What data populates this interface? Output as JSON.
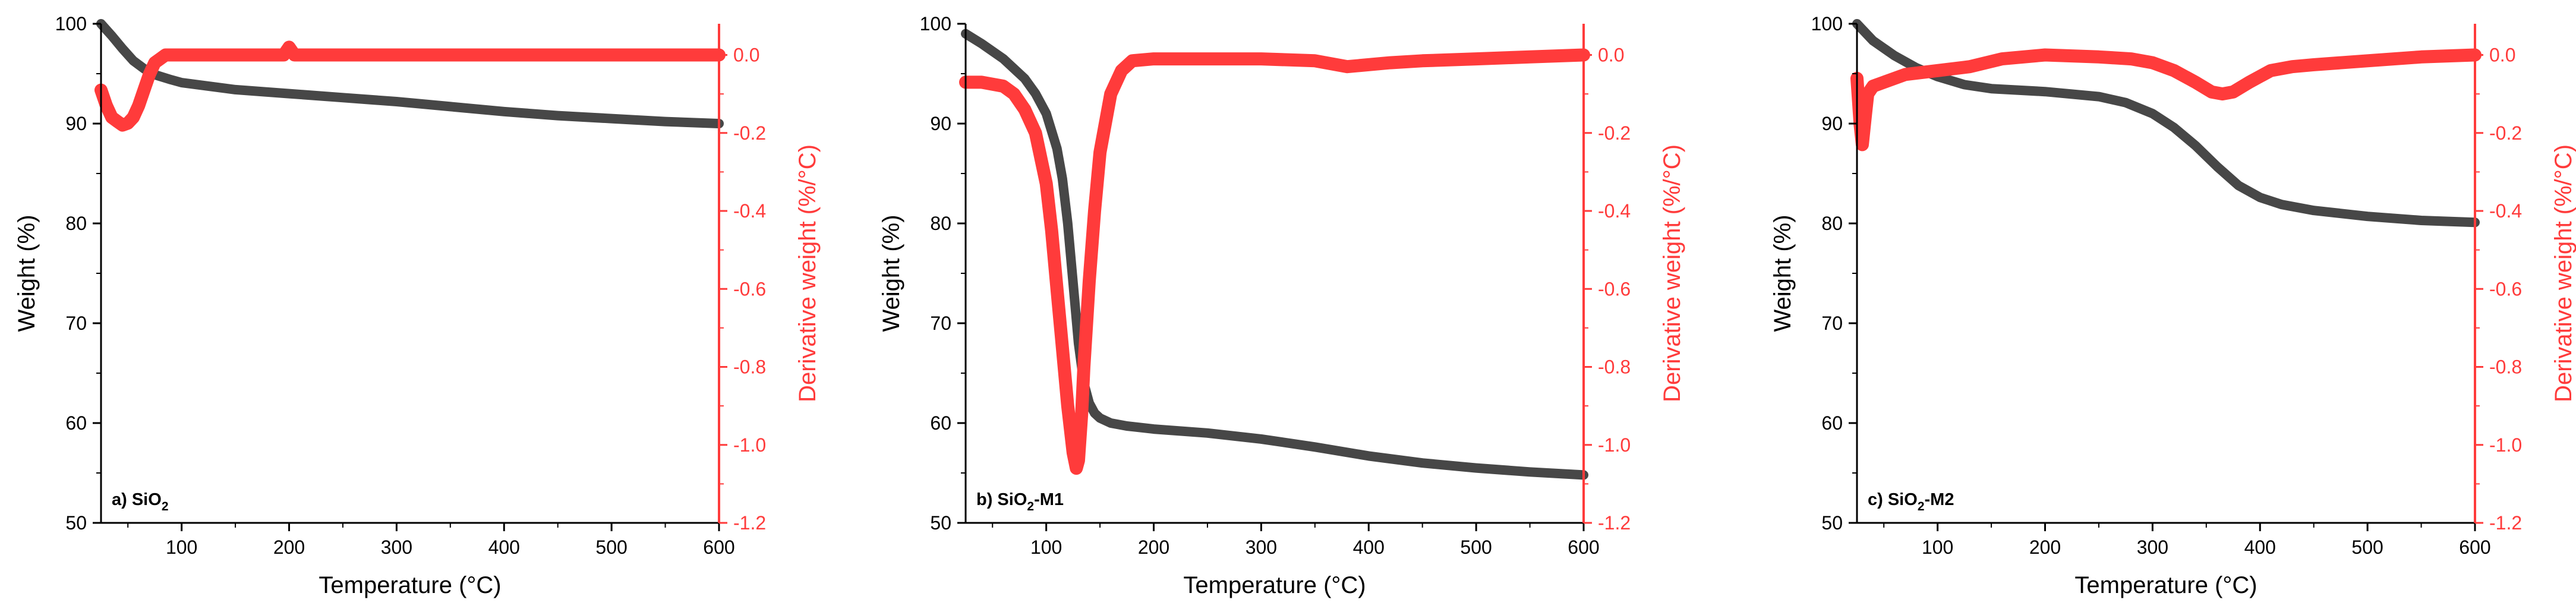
{
  "colors": {
    "weight": "#474747",
    "derivative": "#ff3b3b",
    "axis": "#000000"
  },
  "chart_data": [
    {
      "type": "line",
      "panel_label": {
        "prefix": "a) SiO",
        "subscript": "2",
        "suffix": ""
      },
      "xlabel": "Temperature (°C)",
      "ylabel": "Weight (%)",
      "y2label": "Derivative weight (%/°C)",
      "xlim": [
        25,
        600
      ],
      "ylim": [
        50,
        100
      ],
      "y2lim": [
        -1.2,
        0.08
      ],
      "xticks": [
        100,
        200,
        300,
        400,
        500,
        600
      ],
      "yticks": [
        50,
        60,
        70,
        80,
        90,
        100
      ],
      "y2ticks": [
        -1.2,
        -1.0,
        -0.8,
        -0.6,
        -0.4,
        -0.2,
        0.0
      ],
      "series": [
        {
          "name": "Weight",
          "axis": "left",
          "x": [
            25,
            35,
            45,
            55,
            65,
            75,
            90,
            100,
            150,
            200,
            250,
            300,
            350,
            400,
            450,
            500,
            550,
            600
          ],
          "y": [
            100,
            98.8,
            97.5,
            96.3,
            95.5,
            94.9,
            94.4,
            94.1,
            93.4,
            93.0,
            92.6,
            92.2,
            91.7,
            91.2,
            90.8,
            90.5,
            90.2,
            90.0
          ]
        },
        {
          "name": "Derivative weight",
          "axis": "right",
          "x": [
            25,
            30,
            35,
            40,
            45,
            50,
            55,
            60,
            65,
            70,
            75,
            80,
            85,
            90,
            100,
            150,
            195,
            200,
            205,
            250,
            300,
            350,
            400,
            450,
            500,
            550,
            600
          ],
          "y": [
            -0.09,
            -0.13,
            -0.16,
            -0.17,
            -0.18,
            -0.175,
            -0.16,
            -0.13,
            -0.09,
            -0.05,
            -0.02,
            -0.01,
            0.0,
            0.0,
            0.0,
            0.0,
            0.0,
            0.02,
            0.0,
            0.0,
            0.0,
            0.0,
            0.0,
            0.0,
            0.0,
            0.0,
            0.0
          ]
        }
      ]
    },
    {
      "type": "line",
      "panel_label": {
        "prefix": "b) SiO",
        "subscript": "2",
        "suffix": "-M1"
      },
      "xlabel": "Temperature (°C)",
      "ylabel": "Weight (%)",
      "y2label": "Derivative weight (%/°C)",
      "xlim": [
        25,
        600
      ],
      "ylim": [
        50,
        100
      ],
      "y2lim": [
        -1.2,
        0.08
      ],
      "xticks": [
        100,
        200,
        300,
        400,
        500,
        600
      ],
      "yticks": [
        50,
        60,
        70,
        80,
        90,
        100
      ],
      "y2ticks": [
        -1.2,
        -1.0,
        -0.8,
        -0.6,
        -0.4,
        -0.2,
        0.0
      ],
      "series": [
        {
          "name": "Weight",
          "axis": "left",
          "x": [
            25,
            40,
            60,
            80,
            90,
            100,
            110,
            115,
            120,
            125,
            130,
            135,
            140,
            145,
            150,
            160,
            175,
            200,
            250,
            300,
            350,
            400,
            450,
            500,
            550,
            600
          ],
          "y": [
            99,
            98,
            96.5,
            94.5,
            93,
            91,
            87.5,
            84.5,
            80,
            74,
            68,
            64,
            62,
            61,
            60.5,
            60,
            59.7,
            59.4,
            59.0,
            58.4,
            57.6,
            56.7,
            56.0,
            55.5,
            55.1,
            54.8
          ]
        },
        {
          "name": "Derivative weight",
          "axis": "right",
          "x": [
            25,
            40,
            60,
            70,
            80,
            90,
            100,
            105,
            110,
            115,
            120,
            125,
            128,
            130,
            133,
            135,
            140,
            145,
            150,
            160,
            170,
            180,
            200,
            250,
            300,
            350,
            380,
            420,
            450,
            500,
            550,
            600
          ],
          "y": [
            -0.07,
            -0.07,
            -0.08,
            -0.1,
            -0.14,
            -0.2,
            -0.33,
            -0.45,
            -0.6,
            -0.75,
            -0.9,
            -1.02,
            -1.06,
            -1.04,
            -0.92,
            -0.8,
            -0.58,
            -0.4,
            -0.25,
            -0.1,
            -0.04,
            -0.015,
            -0.01,
            -0.01,
            -0.01,
            -0.015,
            -0.03,
            -0.02,
            -0.015,
            -0.01,
            -0.005,
            0.0
          ]
        }
      ]
    },
    {
      "type": "line",
      "panel_label": {
        "prefix": "c) SiO",
        "subscript": "2",
        "suffix": "-M2"
      },
      "xlabel": "Temperature (°C)",
      "ylabel": "Weight (%)",
      "y2label": "Derivative weight (%/°C)",
      "xlim": [
        25,
        600
      ],
      "ylim": [
        50,
        100
      ],
      "y2lim": [
        -1.2,
        0.08
      ],
      "xticks": [
        100,
        200,
        300,
        400,
        500,
        600
      ],
      "yticks": [
        50,
        60,
        70,
        80,
        90,
        100
      ],
      "y2ticks": [
        -1.2,
        -1.0,
        -0.8,
        -0.6,
        -0.4,
        -0.2,
        0.0
      ],
      "series": [
        {
          "name": "Weight",
          "axis": "left",
          "x": [
            25,
            40,
            60,
            80,
            100,
            125,
            150,
            200,
            250,
            275,
            300,
            320,
            340,
            360,
            380,
            400,
            420,
            450,
            500,
            550,
            600
          ],
          "y": [
            100,
            98.3,
            96.8,
            95.6,
            94.7,
            93.9,
            93.5,
            93.2,
            92.7,
            92.1,
            91.0,
            89.6,
            87.8,
            85.7,
            83.8,
            82.6,
            81.9,
            81.3,
            80.7,
            80.3,
            80.1
          ]
        },
        {
          "name": "Derivative weight",
          "axis": "right",
          "x": [
            25,
            28,
            30,
            33,
            35,
            40,
            50,
            70,
            100,
            130,
            160,
            200,
            250,
            280,
            300,
            320,
            340,
            355,
            365,
            375,
            390,
            410,
            430,
            450,
            500,
            550,
            600
          ],
          "y": [
            -0.06,
            -0.18,
            -0.23,
            -0.15,
            -0.1,
            -0.08,
            -0.07,
            -0.05,
            -0.04,
            -0.03,
            -0.01,
            0.0,
            -0.005,
            -0.01,
            -0.02,
            -0.04,
            -0.07,
            -0.095,
            -0.1,
            -0.095,
            -0.07,
            -0.04,
            -0.03,
            -0.025,
            -0.015,
            -0.005,
            0.0
          ]
        }
      ]
    }
  ]
}
